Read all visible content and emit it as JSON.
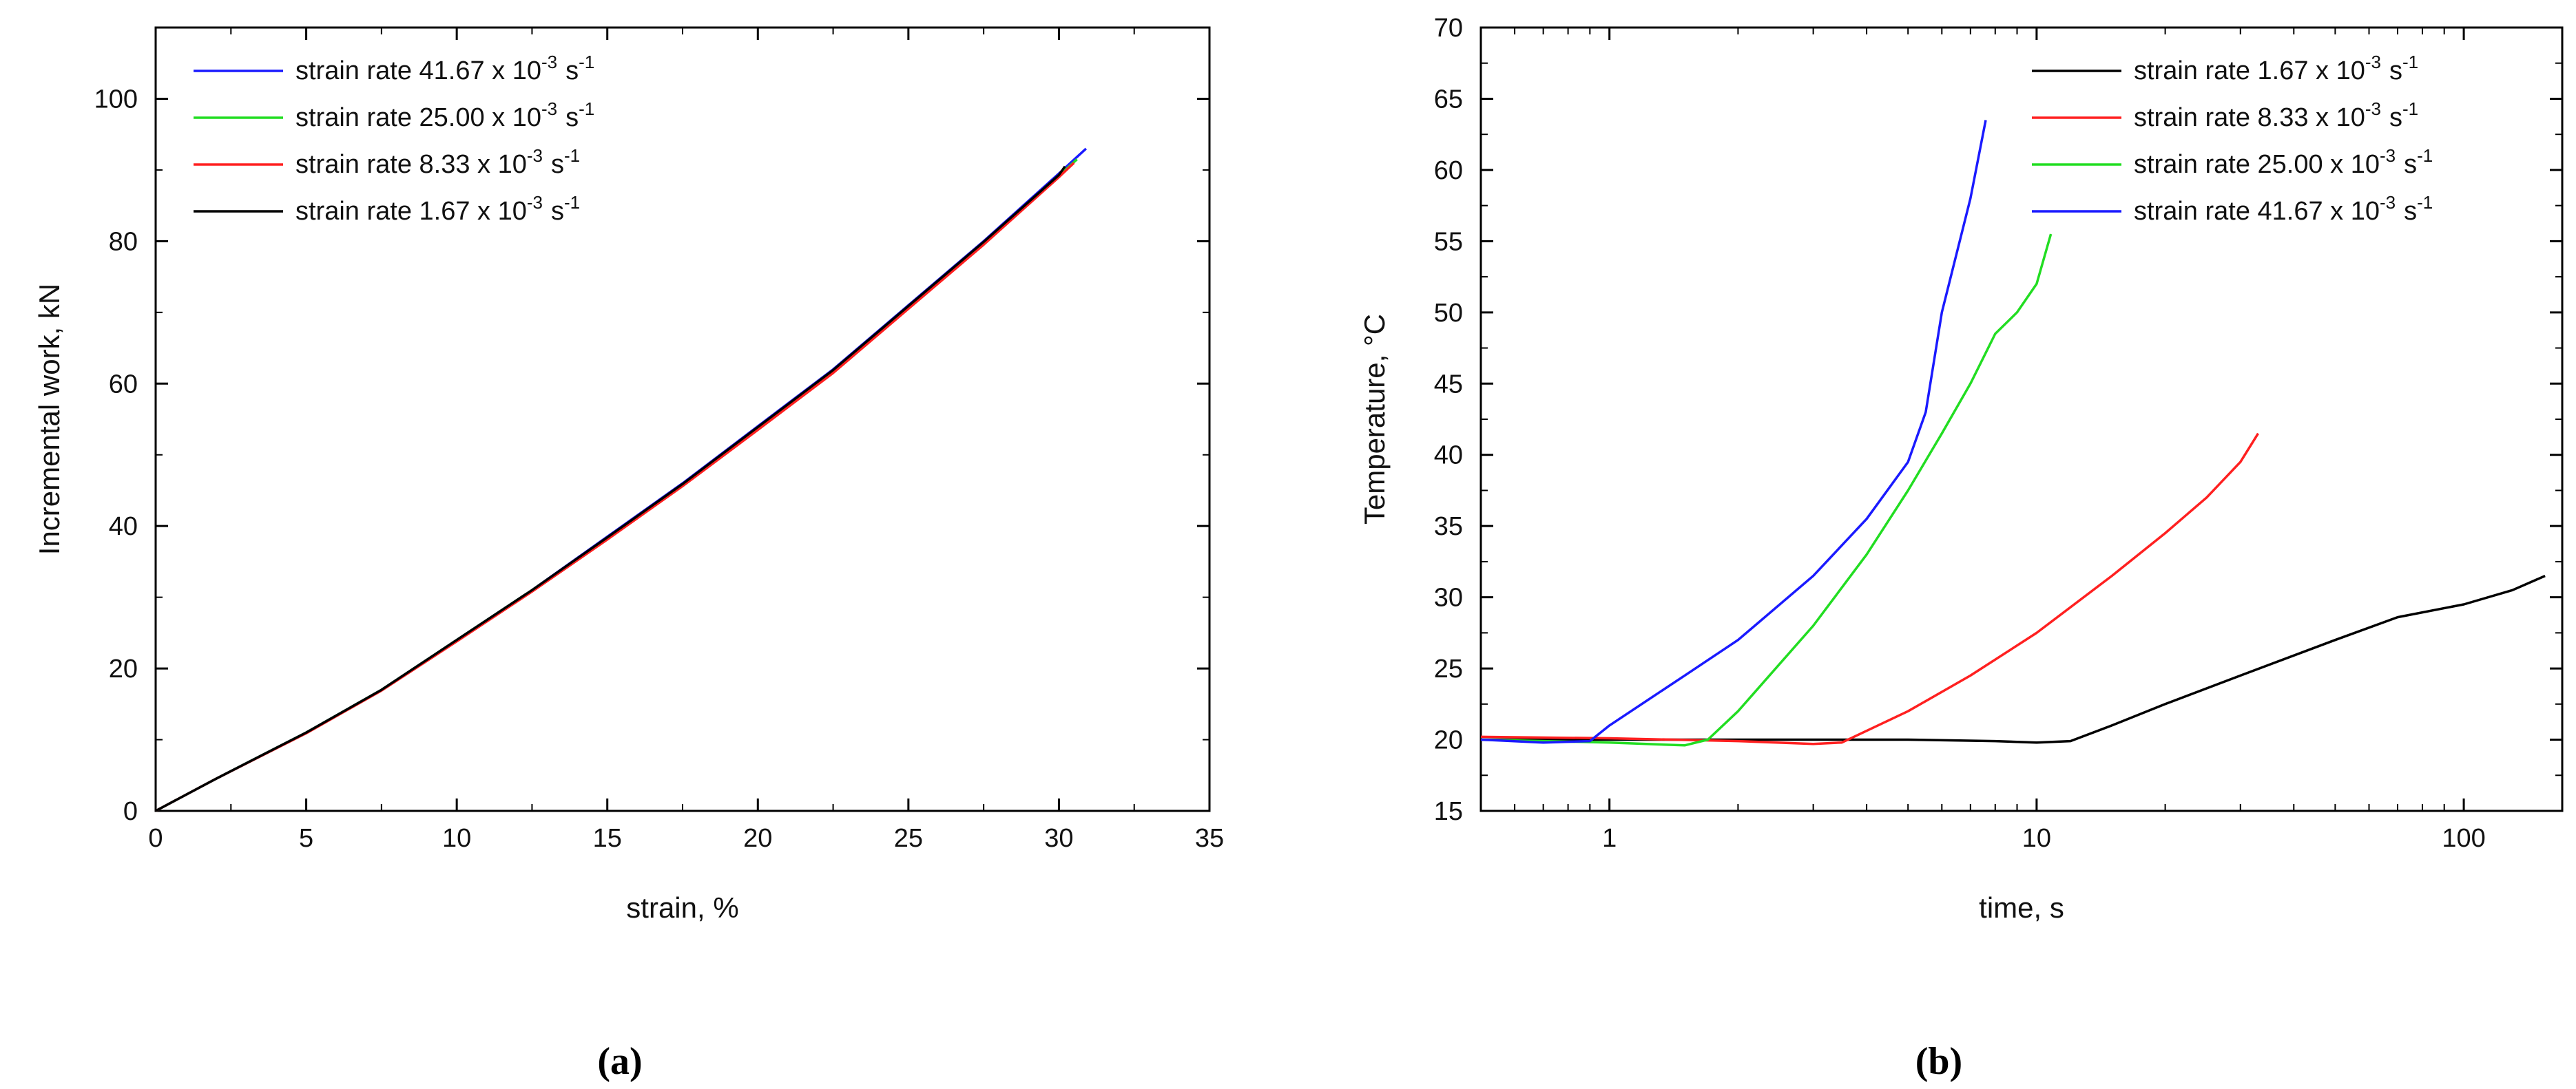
{
  "colors": {
    "blue": "#1a1aff",
    "green": "#22dd22",
    "red": "#ff2020",
    "black": "#000000"
  },
  "captions": {
    "a": "(a)",
    "b": "(b)"
  },
  "chart_data": [
    {
      "id": "a",
      "type": "line",
      "title": "",
      "xlabel": "strain, %",
      "ylabel": "Incremental work, kN",
      "xlim": [
        0,
        35
      ],
      "ylim": [
        0,
        110
      ],
      "xticks": [
        0,
        5,
        10,
        15,
        20,
        25,
        30,
        35
      ],
      "yticks": [
        0,
        20,
        40,
        60,
        80,
        100
      ],
      "grid": false,
      "legend_position": "top-left",
      "series": [
        {
          "name": "strain rate 41.67 x 10",
          "exp": "-3",
          "unit": "s",
          "unit_exp": "-1",
          "color": "#1a1aff",
          "x": [
            0,
            2,
            5,
            7.5,
            10,
            12.5,
            15,
            17.5,
            20,
            22.5,
            25,
            27.5,
            30,
            30.9
          ],
          "y": [
            0,
            4.5,
            11,
            17,
            24,
            31,
            38.5,
            46,
            54,
            62,
            71,
            80,
            89.5,
            93
          ]
        },
        {
          "name": "strain rate 25.00 x 10",
          "exp": "-3",
          "unit": "s",
          "unit_exp": "-1",
          "color": "#22dd22",
          "x": [
            0,
            2,
            5,
            7.5,
            10,
            12.5,
            15,
            17.5,
            20,
            22.5,
            25,
            27.5,
            30,
            30.6
          ],
          "y": [
            0,
            4.5,
            11,
            17,
            24,
            31,
            38.3,
            45.8,
            53.8,
            61.8,
            70.8,
            79.8,
            89.2,
            91.5
          ]
        },
        {
          "name": "strain rate 8.33 x 10",
          "exp": "-3",
          "unit": "s",
          "unit_exp": "-1",
          "color": "#ff2020",
          "x": [
            0,
            2,
            5,
            7.5,
            10,
            12.5,
            15,
            17.5,
            20,
            22.5,
            25,
            27.5,
            30,
            30.5
          ],
          "y": [
            0,
            4.5,
            10.9,
            16.9,
            23.8,
            30.8,
            38.1,
            45.6,
            53.5,
            61.5,
            70.5,
            79.5,
            89,
            91
          ]
        },
        {
          "name": "strain rate 1.67 x 10",
          "exp": "-3",
          "unit": "s",
          "unit_exp": "-1",
          "color": "#000000",
          "x": [
            0,
            2,
            5,
            7.5,
            10,
            12.5,
            15,
            17.5,
            20,
            22.5,
            25,
            27.5,
            30,
            30.2
          ],
          "y": [
            0,
            4.5,
            11,
            17,
            24,
            31,
            38.4,
            45.9,
            53.9,
            61.9,
            70.9,
            79.9,
            89.3,
            90.5
          ]
        }
      ]
    },
    {
      "id": "b",
      "type": "line",
      "title": "",
      "xlabel": "time, s",
      "ylabel": "Temperature, °C",
      "xscale": "log",
      "xlim": [
        0.5,
        170
      ],
      "ylim": [
        15,
        70
      ],
      "xticks": [
        1,
        10,
        100
      ],
      "xtick_labels": [
        "1",
        "10",
        "100"
      ],
      "yticks": [
        15,
        20,
        25,
        30,
        35,
        40,
        45,
        50,
        55,
        60,
        65,
        70
      ],
      "grid": false,
      "legend_position": "top-right",
      "series": [
        {
          "name": "strain rate 1.67 x 10",
          "exp": "-3",
          "unit": "s",
          "unit_exp": "-1",
          "color": "#000000",
          "x": [
            0.5,
            1,
            2,
            5,
            8,
            10,
            12,
            15,
            20,
            30,
            50,
            70,
            100,
            130,
            155
          ],
          "y": [
            20,
            20,
            20,
            20,
            19.9,
            19.8,
            19.9,
            21,
            22.5,
            24.5,
            27,
            28.6,
            29.5,
            30.5,
            31.5
          ]
        },
        {
          "name": "strain rate 8.33 x 10",
          "exp": "-3",
          "unit": "s",
          "unit_exp": "-1",
          "color": "#ff2020",
          "x": [
            0.5,
            1,
            2,
            3,
            3.5,
            5,
            7,
            10,
            15,
            20,
            25,
            30,
            33
          ],
          "y": [
            20.2,
            20.1,
            19.9,
            19.7,
            19.8,
            22,
            24.5,
            27.5,
            31.5,
            34.5,
            37,
            39.5,
            41.5
          ]
        },
        {
          "name": "strain rate 25.00 x 10",
          "exp": "-3",
          "unit": "s",
          "unit_exp": "-1",
          "color": "#22dd22",
          "x": [
            0.5,
            1,
            1.5,
            1.7,
            2,
            3,
            4,
            5,
            6,
            7,
            8,
            9,
            10,
            10.8
          ],
          "y": [
            20,
            19.8,
            19.6,
            20,
            22,
            28,
            33,
            37.5,
            41.5,
            45,
            48.5,
            50,
            52,
            55.5
          ]
        },
        {
          "name": "strain rate 41.67 x 10",
          "exp": "-3",
          "unit": "s",
          "unit_exp": "-1",
          "color": "#1a1aff",
          "x": [
            0.5,
            0.7,
            0.9,
            1,
            1.5,
            2,
            3,
            4,
            5,
            5.5,
            6,
            7,
            7.6
          ],
          "y": [
            20,
            19.8,
            19.9,
            21,
            24.5,
            27,
            31.5,
            35.5,
            39.5,
            43,
            50,
            58,
            63.5
          ]
        }
      ]
    }
  ]
}
